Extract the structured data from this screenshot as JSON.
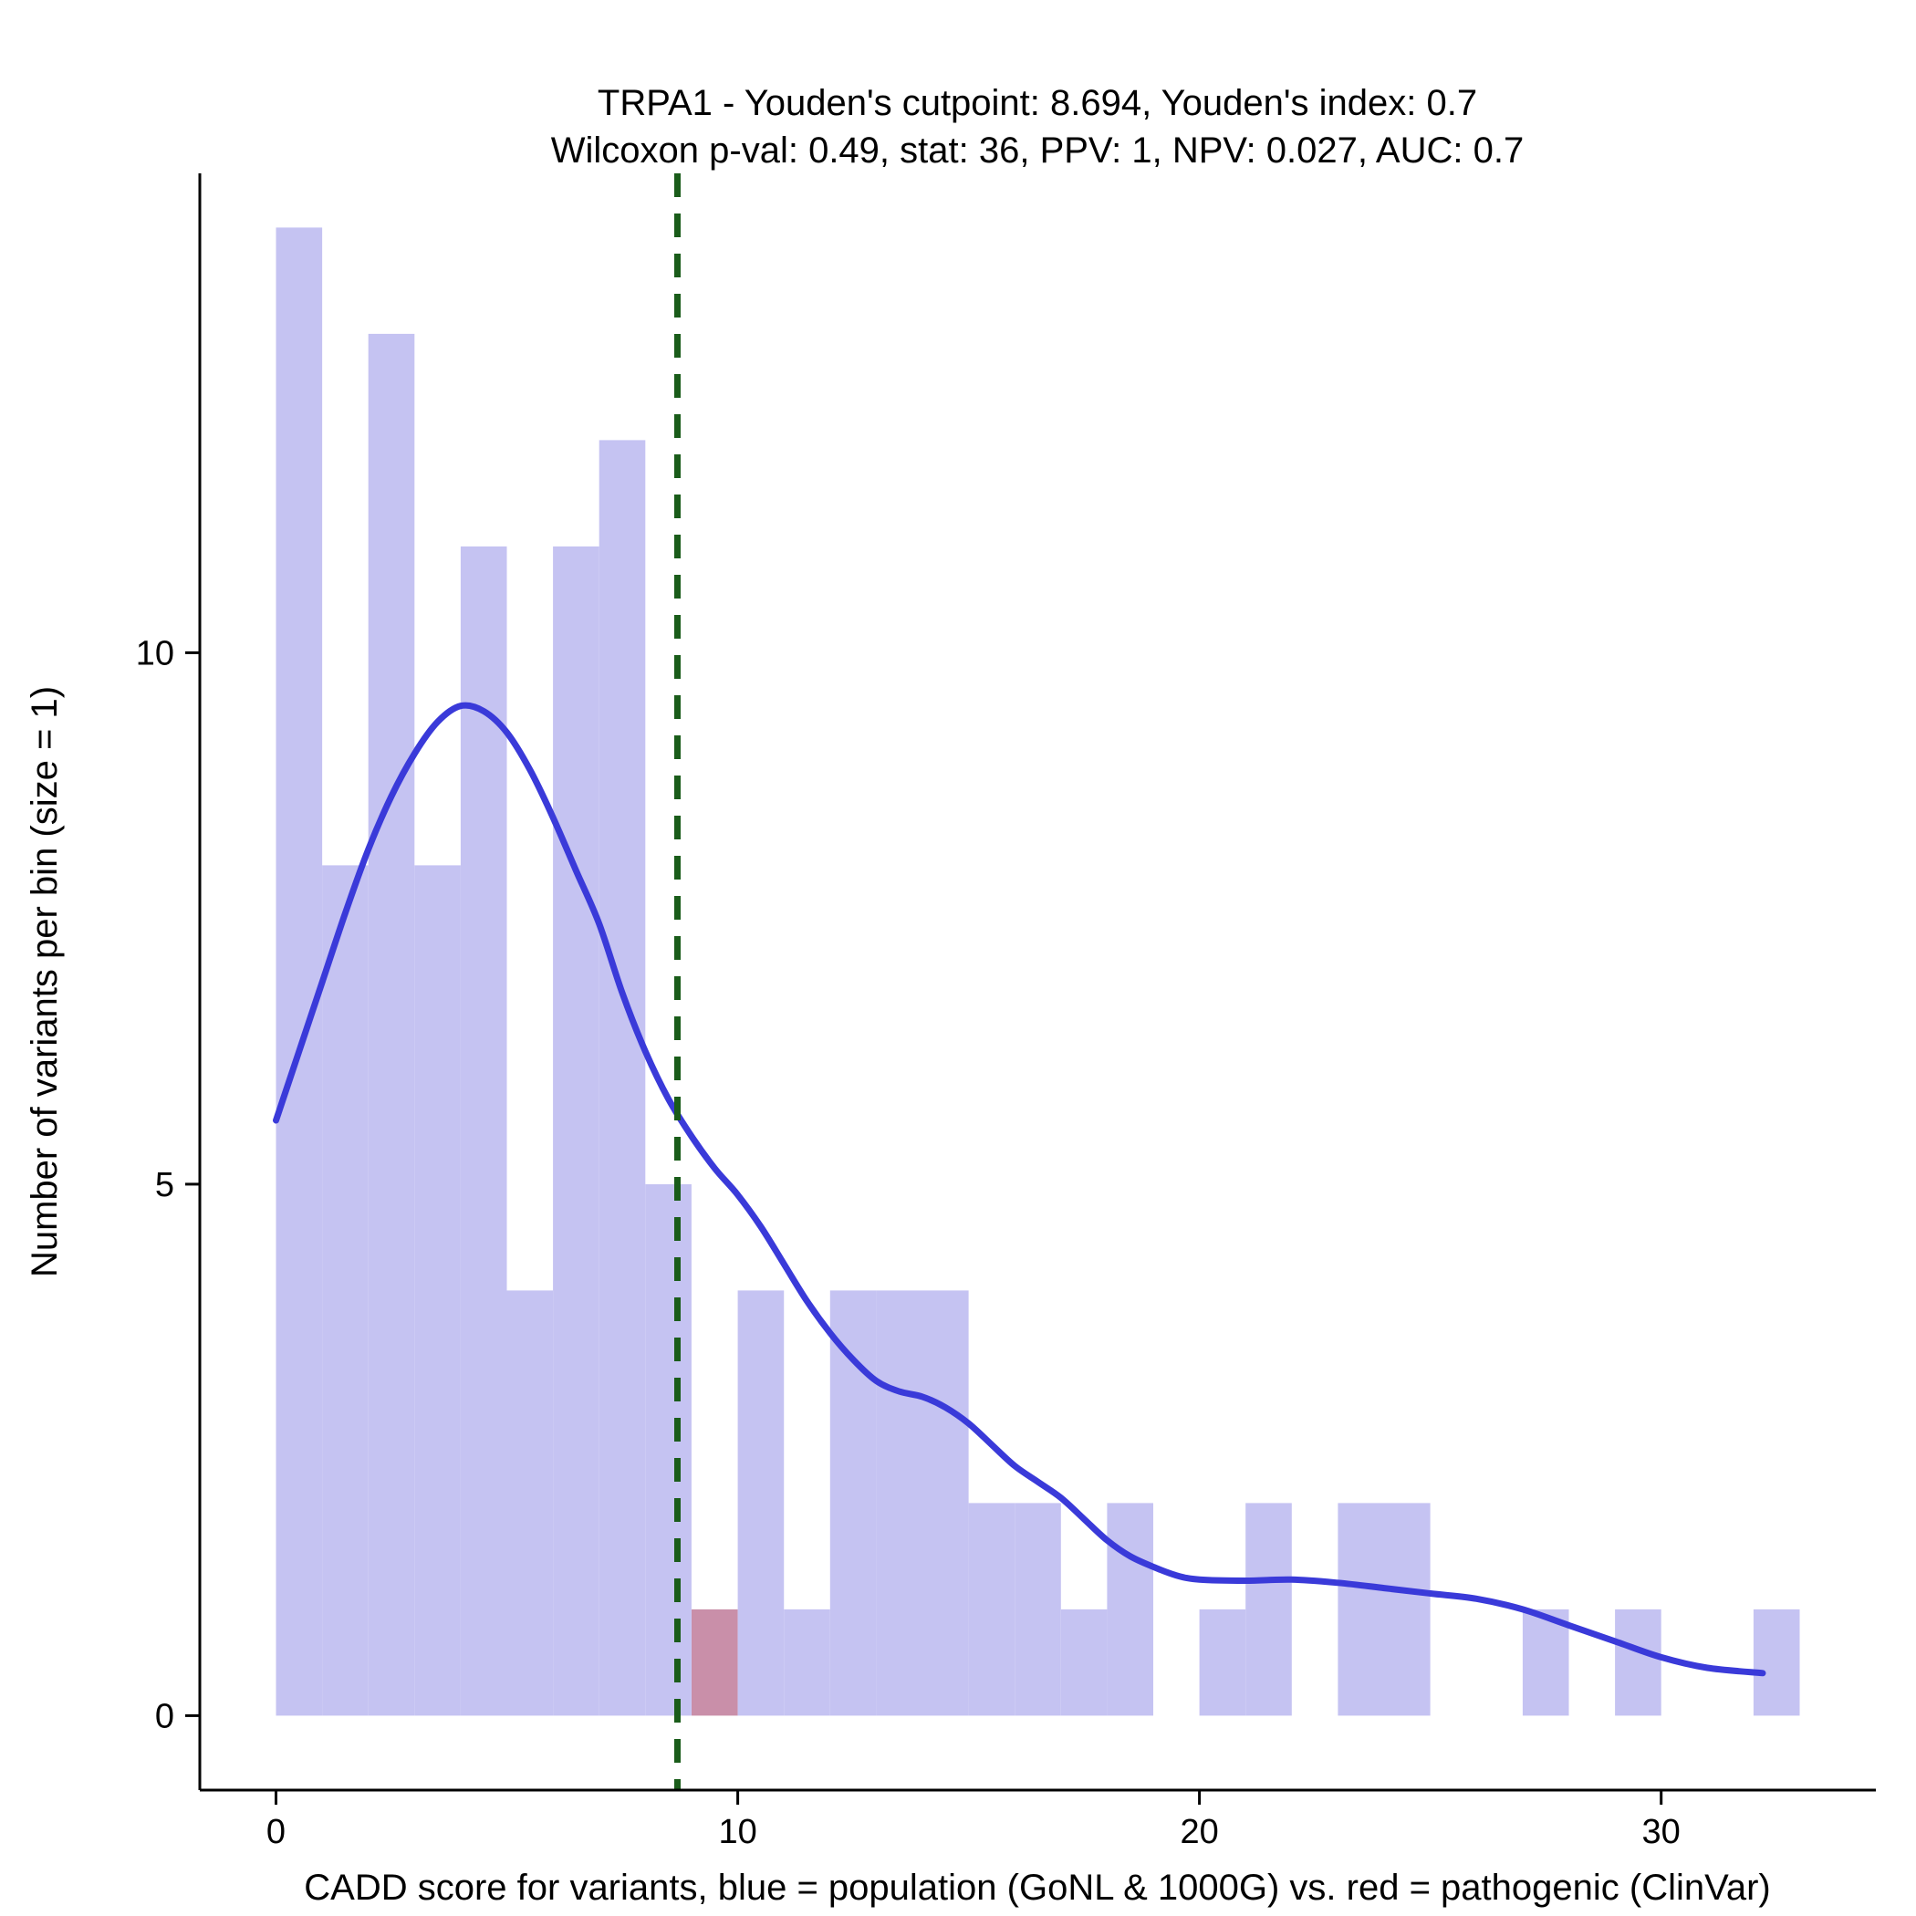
{
  "chart_data": {
    "type": "bar",
    "title": "TRPA1 - Youden's cutpoint: 8.694, Youden's index: 0.7",
    "subtitle": "Wilcoxon p-val: 0.49, stat: 36, PPV: 1, NPV: 0.027, AUC: 0.7",
    "xlabel": "CADD score for variants, blue = population (GoNL & 1000G) vs. red = pathogenic (ClinVar)",
    "ylabel": "Number of variants per bin (size = 1)",
    "stats": {
      "gene": "TRPA1",
      "youden_cutpoint": 8.694,
      "youden_index": 0.7,
      "wilcoxon_p_val": 0.49,
      "wilcoxon_stat": 36,
      "ppv": 1,
      "npv": 0.027,
      "auc": 0.7
    },
    "bin_width": 1,
    "x_ticks": [
      0,
      10,
      20,
      30
    ],
    "y_ticks": [
      0,
      5,
      10
    ],
    "xlim": [
      -1.65,
      34.65
    ],
    "ylim": [
      -0.7,
      14.51
    ],
    "grid": false,
    "legend_position": "none",
    "cutpoint_x": 8.694,
    "colors": {
      "population_fill": "#C5C3F2",
      "pathogenic_fill": "#C98FA9",
      "density_line": "#3A3AD9",
      "cutpoint_line": "#1A5C1A",
      "axis": "#000000",
      "background": "#FFFFFF"
    },
    "groups": {
      "population": "population (GoNL & 1000G)",
      "pathogenic": "pathogenic (ClinVar)"
    },
    "bars": [
      {
        "x": 0,
        "height": 14,
        "group": "population"
      },
      {
        "x": 1,
        "height": 8,
        "group": "population"
      },
      {
        "x": 2,
        "height": 13,
        "group": "population"
      },
      {
        "x": 3,
        "height": 8,
        "group": "population"
      },
      {
        "x": 4,
        "height": 11,
        "group": "population"
      },
      {
        "x": 5,
        "height": 4,
        "group": "population"
      },
      {
        "x": 6,
        "height": 11,
        "group": "population"
      },
      {
        "x": 7,
        "height": 12,
        "group": "population"
      },
      {
        "x": 8,
        "height": 5,
        "group": "population"
      },
      {
        "x": 9,
        "height": 1,
        "group": "pathogenic"
      },
      {
        "x": 10,
        "height": 4,
        "group": "population"
      },
      {
        "x": 11,
        "height": 1,
        "group": "population"
      },
      {
        "x": 12,
        "height": 4,
        "group": "population"
      },
      {
        "x": 13,
        "height": 4,
        "group": "population"
      },
      {
        "x": 14,
        "height": 4,
        "group": "population"
      },
      {
        "x": 15,
        "height": 2,
        "group": "population"
      },
      {
        "x": 16,
        "height": 2,
        "group": "population"
      },
      {
        "x": 17,
        "height": 1,
        "group": "population"
      },
      {
        "x": 18,
        "height": 2,
        "group": "population"
      },
      {
        "x": 20,
        "height": 1,
        "group": "population"
      },
      {
        "x": 21,
        "height": 2,
        "group": "population"
      },
      {
        "x": 23,
        "height": 2,
        "group": "population"
      },
      {
        "x": 24,
        "height": 2,
        "group": "population"
      },
      {
        "x": 27,
        "height": 1,
        "group": "population"
      },
      {
        "x": 29,
        "height": 1,
        "group": "population"
      },
      {
        "x": 32,
        "height": 1,
        "group": "population"
      }
    ],
    "density": {
      "x": [
        0,
        0.5,
        1,
        1.5,
        2,
        2.5,
        3,
        3.5,
        4,
        4.5,
        5,
        5.5,
        6,
        6.5,
        7,
        7.5,
        8,
        8.5,
        9,
        9.5,
        10,
        10.5,
        11,
        11.5,
        12,
        12.5,
        13,
        13.5,
        14,
        14.5,
        15,
        15.5,
        16,
        16.5,
        17,
        17.5,
        18,
        18.5,
        19,
        19.5,
        20,
        21,
        22,
        23,
        24,
        25,
        26,
        27,
        28,
        29,
        30,
        31,
        32.2
      ],
      "y": [
        5.6,
        6.25,
        6.9,
        7.55,
        8.15,
        8.65,
        9.05,
        9.35,
        9.5,
        9.45,
        9.25,
        8.9,
        8.45,
        7.95,
        7.45,
        6.8,
        6.25,
        5.8,
        5.45,
        5.15,
        4.9,
        4.6,
        4.25,
        3.9,
        3.6,
        3.35,
        3.15,
        3.05,
        3.0,
        2.9,
        2.75,
        2.55,
        2.35,
        2.2,
        2.05,
        1.85,
        1.65,
        1.5,
        1.4,
        1.32,
        1.28,
        1.27,
        1.28,
        1.25,
        1.2,
        1.15,
        1.1,
        1.0,
        0.85,
        0.7,
        0.55,
        0.45,
        0.4
      ]
    }
  }
}
